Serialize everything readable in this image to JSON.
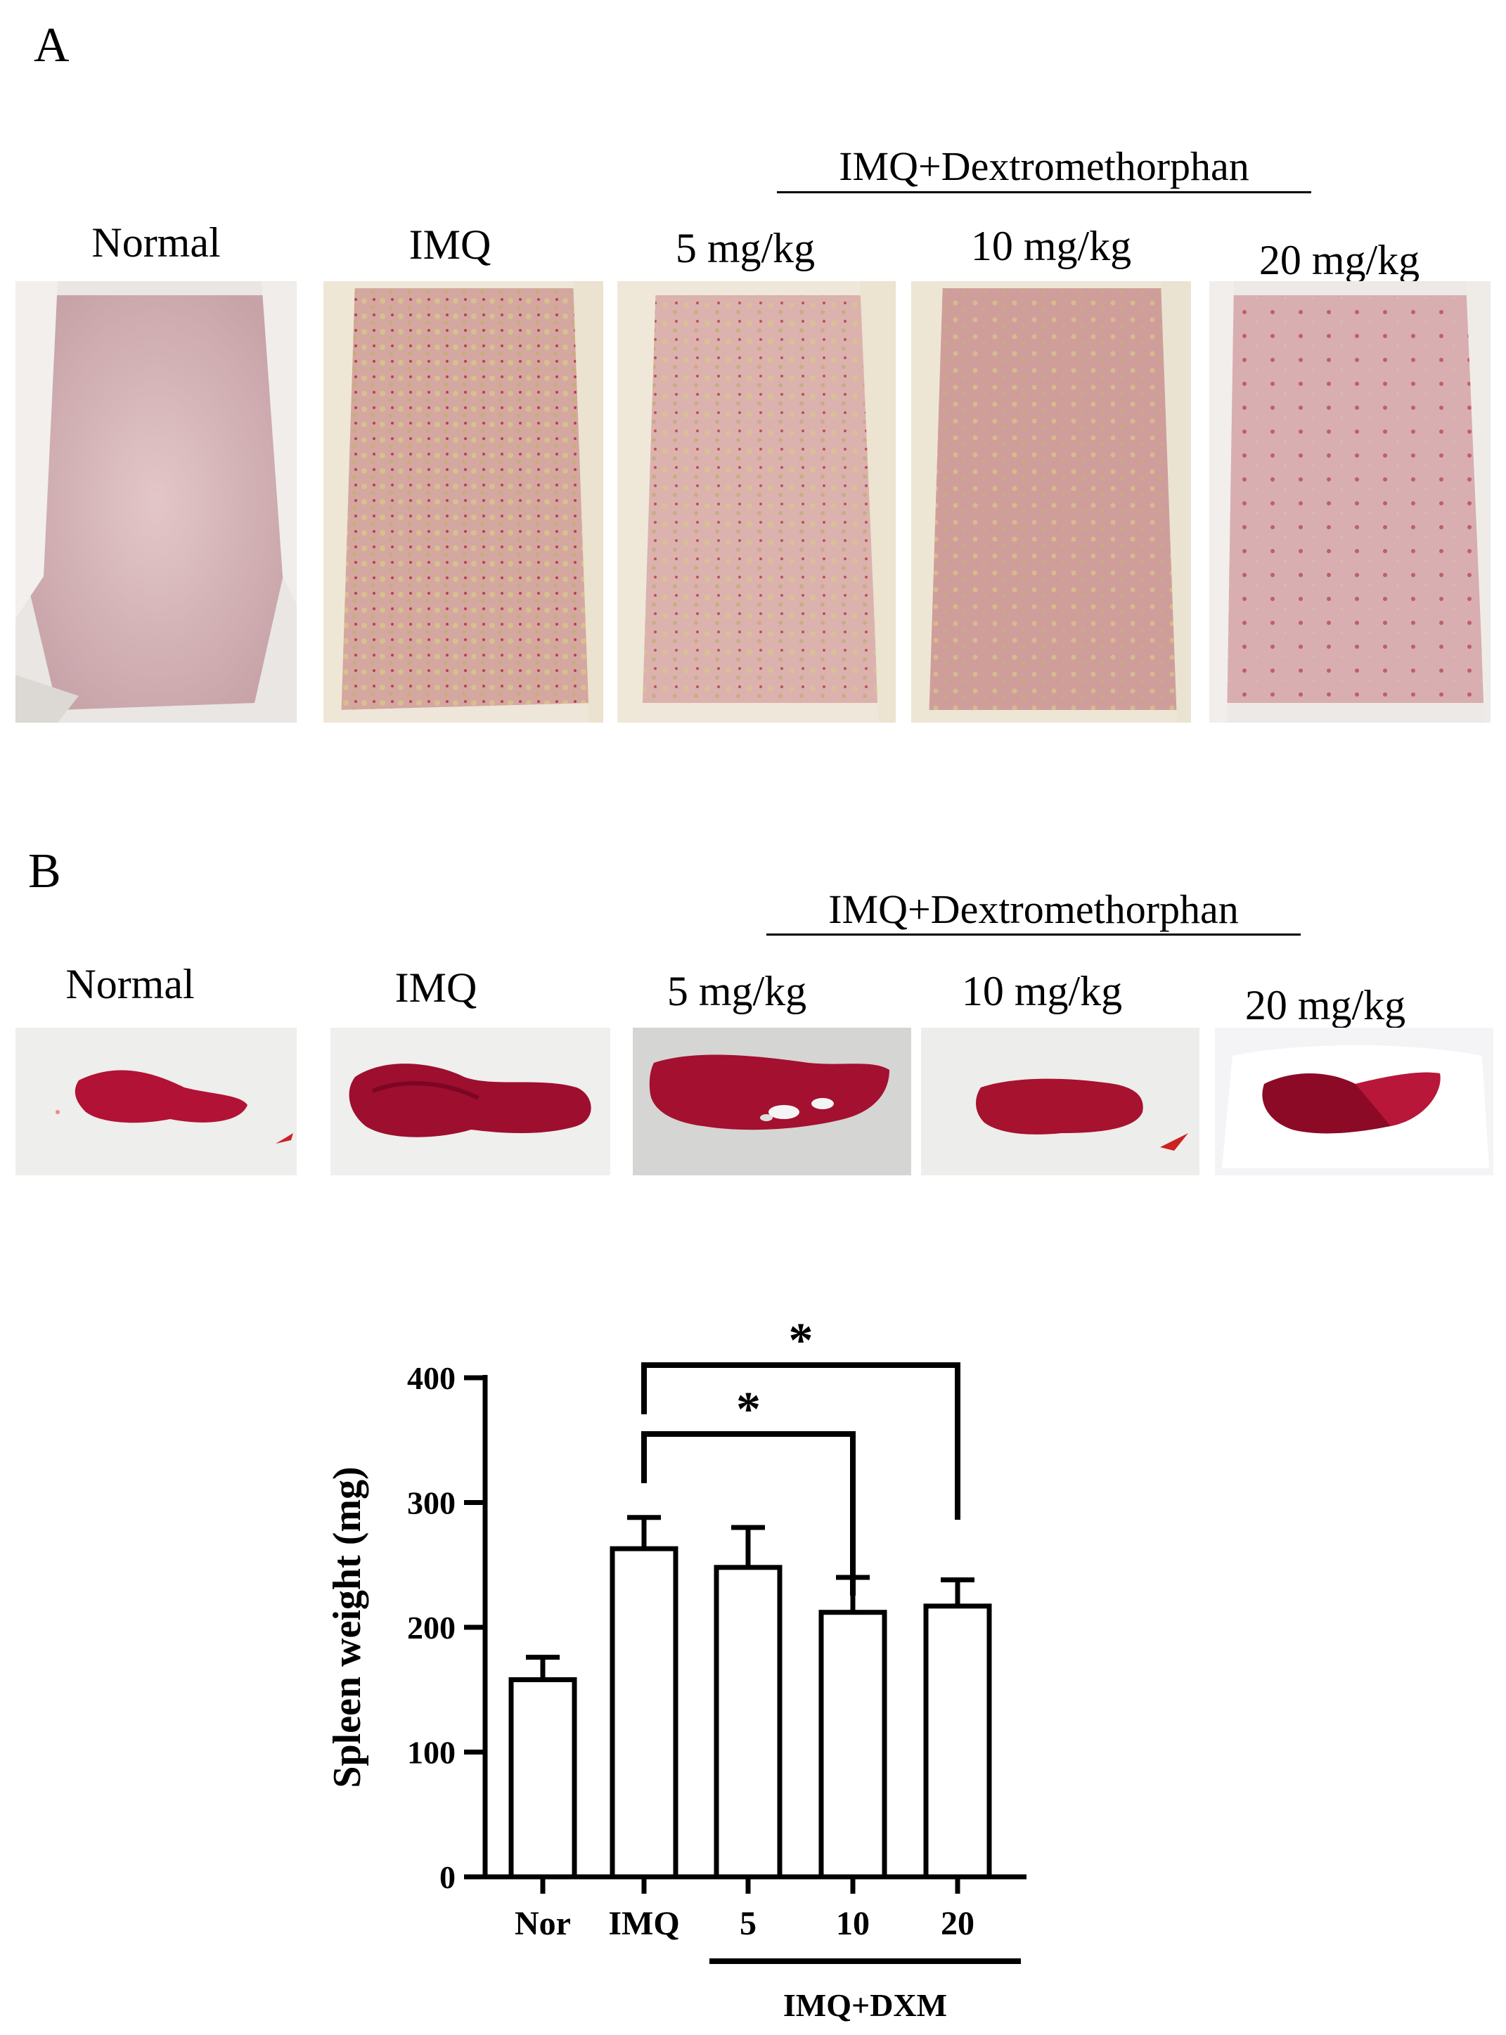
{
  "panel_a": {
    "letter": "A",
    "group_label": "IMQ+Dextromethorphan",
    "labels": [
      "Normal",
      "IMQ",
      "5 mg/kg",
      "10 mg/kg",
      "20 mg/kg"
    ]
  },
  "panel_b": {
    "letter": "B",
    "group_label": "IMQ+Dextromethorphan",
    "labels": [
      "Normal",
      "IMQ",
      "5 mg/kg",
      "10 mg/kg",
      "20 mg/kg"
    ]
  },
  "chart_data": {
    "type": "bar",
    "categories": [
      "Nor",
      "IMQ",
      "5",
      "10",
      "20"
    ],
    "values": [
      158,
      263,
      248,
      212,
      217
    ],
    "errors": [
      18,
      25,
      32,
      28,
      21
    ],
    "ylabel": "Spleen weight (mg)",
    "ylim": [
      0,
      400
    ],
    "yticks": [
      0,
      100,
      200,
      300,
      400
    ],
    "group_label": "IMQ+DXM",
    "group_categories": [
      "5",
      "10",
      "20"
    ],
    "significance": [
      {
        "from": "IMQ",
        "to": "10",
        "label": "*"
      },
      {
        "from": "IMQ",
        "to": "20",
        "label": "*"
      }
    ],
    "bar_fill": "#ffffff",
    "bar_stroke": "#000000"
  }
}
